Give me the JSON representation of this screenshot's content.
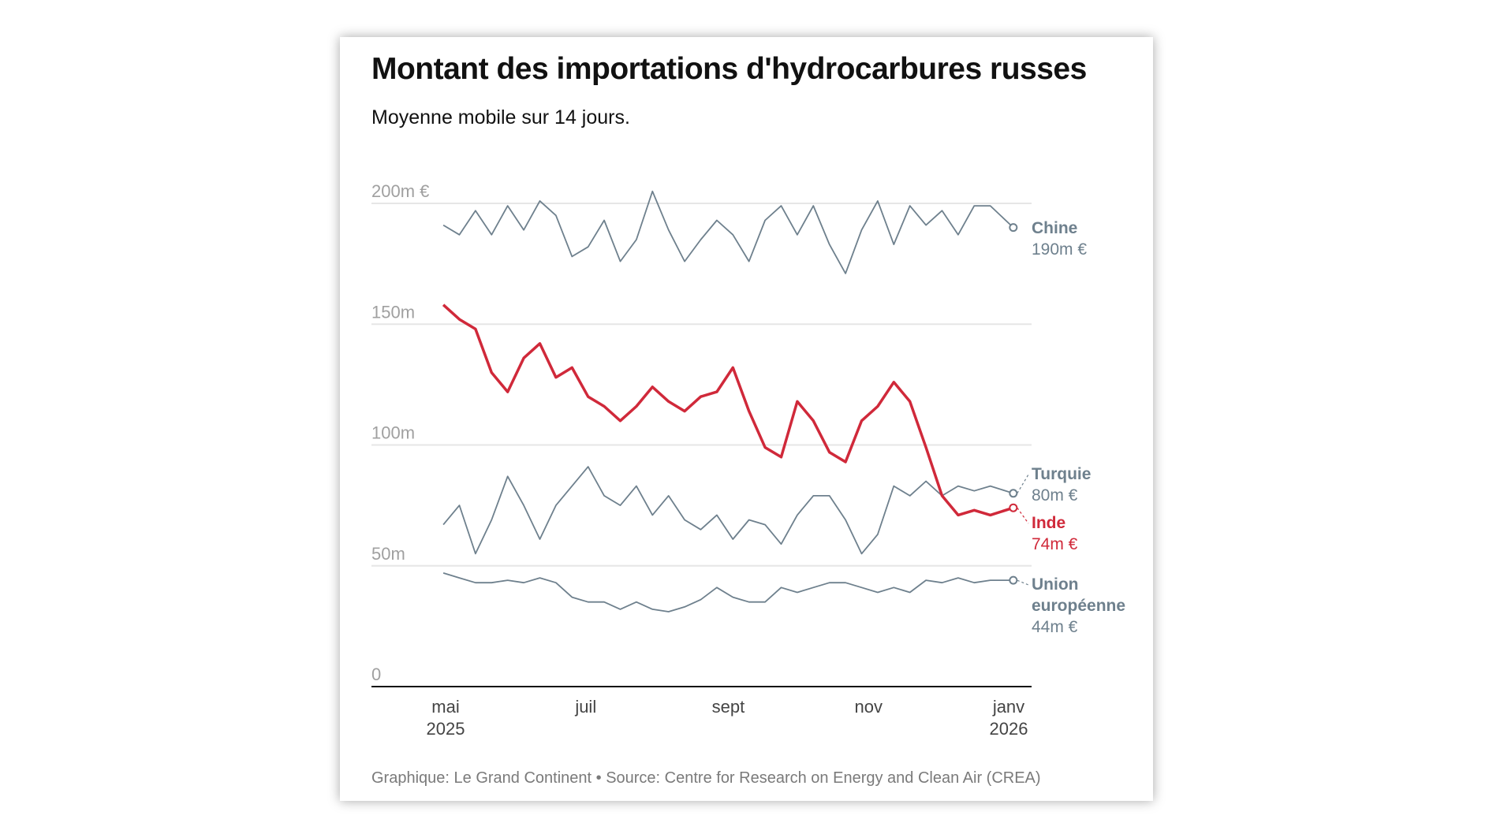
{
  "title": "Montant des importations d'hydrocarbures russes",
  "subtitle": "Moyenne mobile sur 14 jours.",
  "footer": "Graphique: Le Grand Continent • Source: Centre for Research on Energy and Clean Air (CREA)",
  "colors": {
    "highlight": "#d0293a",
    "other": "#6e808d",
    "grid": "#e6e6e6"
  },
  "chart_data": {
    "type": "line",
    "title": "Montant des importations d'hydrocarbures russes",
    "subtitle": "Moyenne mobile sur 14 jours.",
    "ylim": [
      0,
      200
    ],
    "grid": true,
    "y_ticks": [
      {
        "value": 200,
        "label": "200m €"
      },
      {
        "value": 150,
        "label": "150m"
      },
      {
        "value": 100,
        "label": "100m"
      },
      {
        "value": 50,
        "label": "50m"
      },
      {
        "value": 0,
        "label": "0"
      }
    ],
    "x_ticks": [
      {
        "date": "2025-05-01",
        "label": "mai",
        "sub": "2025"
      },
      {
        "date": "2025-07-01",
        "label": "juil",
        "sub": ""
      },
      {
        "date": "2025-09-01",
        "label": "sept",
        "sub": ""
      },
      {
        "date": "2025-11-01",
        "label": "nov",
        "sub": ""
      },
      {
        "date": "2026-01-01",
        "label": "janv",
        "sub": "2026"
      }
    ],
    "x": [
      "2025-04-30",
      "2025-05-07",
      "2025-05-14",
      "2025-05-21",
      "2025-05-28",
      "2025-06-04",
      "2025-06-11",
      "2025-06-18",
      "2025-06-25",
      "2025-07-02",
      "2025-07-09",
      "2025-07-16",
      "2025-07-23",
      "2025-07-30",
      "2025-08-06",
      "2025-08-13",
      "2025-08-20",
      "2025-08-27",
      "2025-09-03",
      "2025-09-10",
      "2025-09-17",
      "2025-09-24",
      "2025-10-01",
      "2025-10-08",
      "2025-10-15",
      "2025-10-22",
      "2025-10-29",
      "2025-11-05",
      "2025-11-12",
      "2025-11-19",
      "2025-11-26",
      "2025-12-03",
      "2025-12-10",
      "2025-12-17",
      "2025-12-24",
      "2026-01-03"
    ],
    "series": [
      {
        "name": "Chine",
        "end_label": "190m €",
        "highlight": false,
        "values": [
          191,
          187,
          197,
          187,
          199,
          189,
          201,
          195,
          178,
          182,
          193,
          176,
          185,
          205,
          189,
          176,
          185,
          193,
          187,
          176,
          193,
          199,
          187,
          199,
          183,
          171,
          189,
          201,
          183,
          199,
          191,
          197,
          187,
          199,
          199,
          190
        ]
      },
      {
        "name": "Inde",
        "end_label": "74m €",
        "highlight": true,
        "values": [
          158,
          152,
          148,
          130,
          122,
          136,
          142,
          128,
          132,
          120,
          116,
          110,
          116,
          124,
          118,
          114,
          120,
          122,
          132,
          114,
          99,
          95,
          118,
          110,
          97,
          93,
          110,
          116,
          126,
          118,
          99,
          79,
          71,
          73,
          71,
          74
        ]
      },
      {
        "name": "Turquie",
        "end_label": "80m €",
        "highlight": false,
        "values": [
          67,
          75,
          55,
          69,
          87,
          75,
          61,
          75,
          83,
          91,
          79,
          75,
          83,
          71,
          79,
          69,
          65,
          71,
          61,
          69,
          67,
          59,
          71,
          79,
          79,
          69,
          55,
          63,
          83,
          79,
          85,
          79,
          83,
          81,
          83,
          80
        ]
      },
      {
        "name": "Union européenne",
        "name_lines": [
          "Union",
          "européenne"
        ],
        "end_label": "44m €",
        "highlight": false,
        "values": [
          47,
          45,
          43,
          43,
          44,
          43,
          45,
          43,
          37,
          35,
          35,
          32,
          35,
          32,
          31,
          33,
          36,
          41,
          37,
          35,
          35,
          41,
          39,
          41,
          43,
          43,
          41,
          39,
          41,
          39,
          44,
          43,
          45,
          43,
          44,
          44
        ]
      }
    ]
  }
}
